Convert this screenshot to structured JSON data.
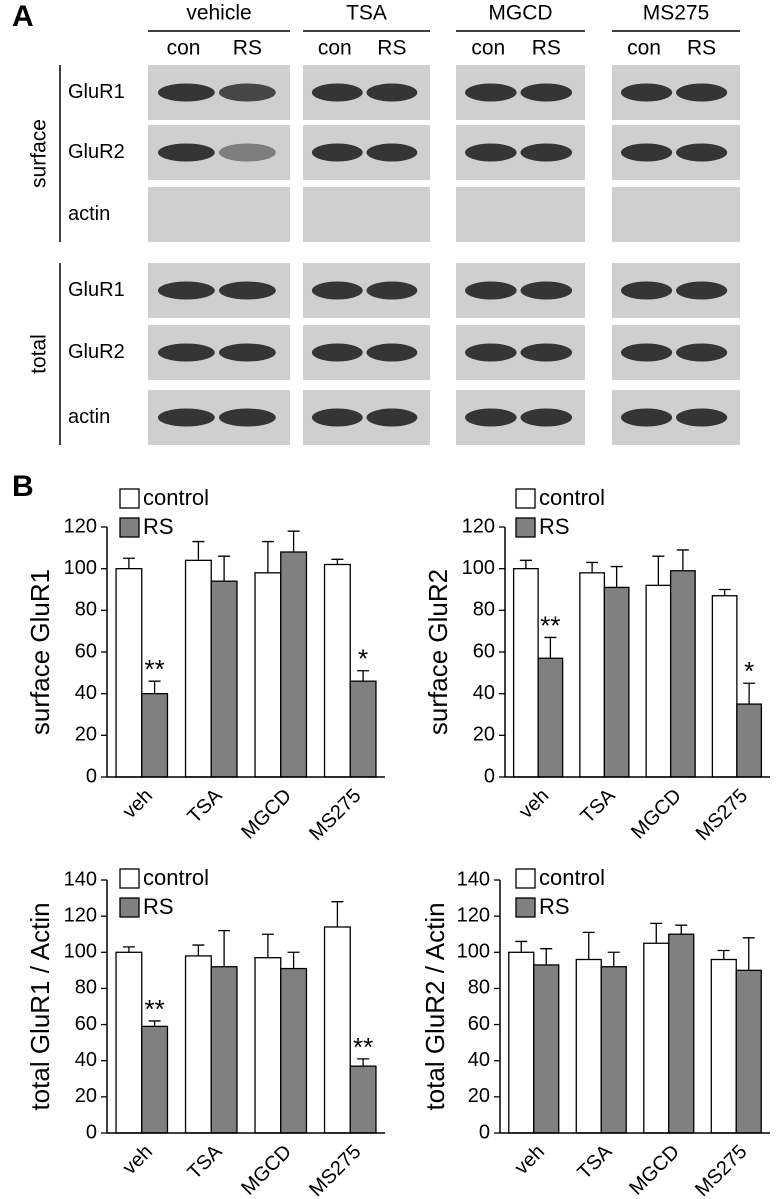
{
  "panel_labels": [
    "A",
    "B"
  ],
  "blot": {
    "groups": [
      "vehicle",
      "TSA",
      "MGCD",
      "MS275"
    ],
    "lanes": [
      "con",
      "RS"
    ],
    "sections": [
      {
        "label": "surface",
        "rows": [
          "GluR1",
          "GluR2",
          "actin"
        ]
      },
      {
        "label": "total",
        "rows": [
          "GluR1",
          "GluR2",
          "actin"
        ]
      }
    ]
  },
  "chart_data": [
    {
      "type": "bar",
      "ylabel": "surface GluR1",
      "categories": [
        "veh",
        "TSA",
        "MGCD",
        "MS275"
      ],
      "ylim": [
        0,
        120
      ],
      "yticks": [
        0,
        20,
        40,
        60,
        80,
        100,
        120
      ],
      "series": [
        {
          "name": "control",
          "color": "#ffffff",
          "values": [
            100,
            104,
            98,
            102
          ],
          "errors": [
            5,
            9,
            15,
            2.5
          ]
        },
        {
          "name": "RS",
          "color": "#808080",
          "values": [
            40,
            94,
            108,
            46
          ],
          "errors": [
            6,
            12,
            10,
            5
          ],
          "significance": [
            "**",
            null,
            null,
            "*"
          ]
        }
      ]
    },
    {
      "type": "bar",
      "ylabel": "surface GluR2",
      "categories": [
        "veh",
        "TSA",
        "MGCD",
        "MS275"
      ],
      "ylim": [
        0,
        120
      ],
      "yticks": [
        0,
        20,
        40,
        60,
        80,
        100,
        120
      ],
      "series": [
        {
          "name": "control",
          "color": "#ffffff",
          "values": [
            100,
            98,
            92,
            87
          ],
          "errors": [
            4,
            5,
            14,
            3
          ]
        },
        {
          "name": "RS",
          "color": "#808080",
          "values": [
            57,
            91,
            99,
            35
          ],
          "errors": [
            10,
            10,
            10,
            10
          ],
          "significance": [
            "**",
            null,
            null,
            "*"
          ]
        }
      ]
    },
    {
      "type": "bar",
      "ylabel": "total GluR1 / Actin",
      "categories": [
        "veh",
        "TSA",
        "MGCD",
        "MS275"
      ],
      "ylim": [
        0,
        140
      ],
      "yticks": [
        0,
        20,
        40,
        60,
        80,
        100,
        120,
        140
      ],
      "series": [
        {
          "name": "control",
          "color": "#ffffff",
          "values": [
            100,
            98,
            97,
            114
          ],
          "errors": [
            3,
            6,
            13,
            14
          ]
        },
        {
          "name": "RS",
          "color": "#808080",
          "values": [
            59,
            92,
            91,
            37
          ],
          "errors": [
            3,
            20,
            9,
            4
          ],
          "significance": [
            "**",
            null,
            null,
            "**"
          ]
        }
      ]
    },
    {
      "type": "bar",
      "ylabel": "total GluR2 / Actin",
      "categories": [
        "veh",
        "TSA",
        "MGCD",
        "MS275"
      ],
      "ylim": [
        0,
        140
      ],
      "yticks": [
        0,
        20,
        40,
        60,
        80,
        100,
        120,
        140
      ],
      "series": [
        {
          "name": "control",
          "color": "#ffffff",
          "values": [
            100,
            96,
            105,
            96
          ],
          "errors": [
            6,
            15,
            11,
            5
          ]
        },
        {
          "name": "RS",
          "color": "#808080",
          "values": [
            93,
            92,
            110,
            90
          ],
          "errors": [
            9,
            8,
            5,
            18
          ]
        }
      ]
    }
  ]
}
